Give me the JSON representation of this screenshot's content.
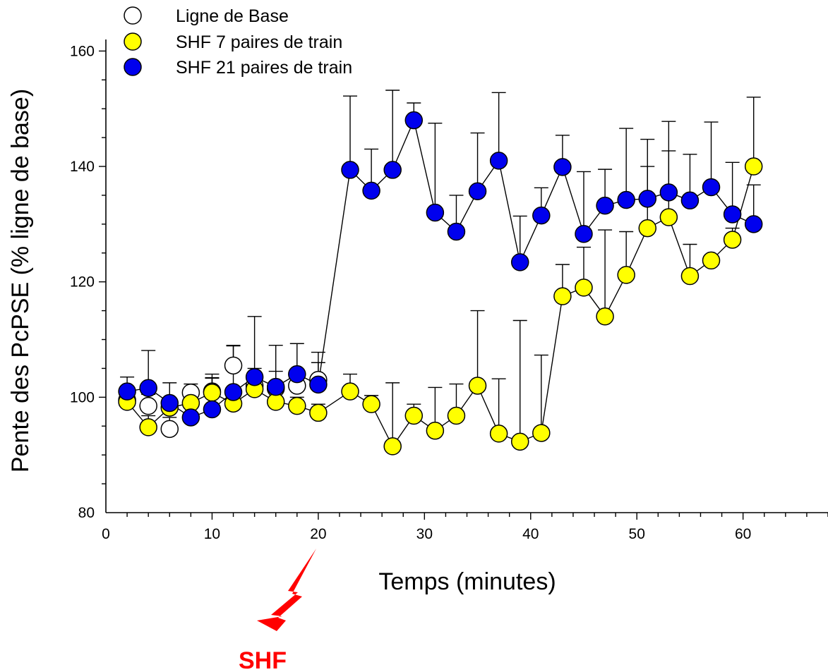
{
  "colors": {
    "baseline": "#ffffff",
    "shf7": "#ffff00",
    "shf21": "#0000ee",
    "stroke": "#000000",
    "stimulus": "#ff0000"
  },
  "stimulus": {
    "label": "SHF",
    "icon": "lightning-bolt-icon",
    "at_x": 20
  },
  "chart_data": {
    "type": "scatter",
    "title": "",
    "xlabel": "Temps (minutes)",
    "ylabel": "Pente des PcPSE (% ligne de base)",
    "xlim": [
      0,
      68
    ],
    "ylim": [
      80,
      162
    ],
    "xticks": [
      0,
      10,
      20,
      30,
      40,
      50,
      60
    ],
    "yticks": [
      80,
      100,
      120,
      140,
      160
    ],
    "grid": false,
    "legend": "top-left",
    "error_bars": "upper",
    "series": [
      {
        "name": "Ligne de Base",
        "color": "#ffffff",
        "connected": false,
        "x": [
          2,
          4,
          6,
          8,
          10,
          12,
          14,
          16,
          18,
          20
        ],
        "y": [
          99.5,
          98.5,
          94.5,
          100.8,
          101.0,
          105.5,
          102.0,
          101.5,
          102.0,
          103.0
        ],
        "err": [
          1.5,
          2.0,
          2.0,
          1.5,
          3.0,
          3.5,
          3.0,
          3.0,
          2.5,
          3.0
        ]
      },
      {
        "name": "SHF 7 paires de train",
        "color": "#ffff00",
        "connected": true,
        "x": [
          2,
          4,
          6,
          8,
          10,
          12,
          14,
          16,
          18,
          20,
          23,
          25,
          27,
          29,
          31,
          33,
          35,
          37,
          39,
          41,
          43,
          45,
          47,
          49,
          51,
          53,
          55,
          57,
          59,
          61
        ],
        "y": [
          99.2,
          94.8,
          98.2,
          99.0,
          100.8,
          98.9,
          101.4,
          99.2,
          98.5,
          97.3,
          101.0,
          98.8,
          91.5,
          96.8,
          94.2,
          96.8,
          102.0,
          93.7,
          92.3,
          93.8,
          117.5,
          119.0,
          114.0,
          121.2,
          129.3,
          131.2,
          121.0,
          123.7,
          127.3,
          140.0
        ],
        "err": [
          1.5,
          2.0,
          1.5,
          1.5,
          2.5,
          2.0,
          2.5,
          1.5,
          1.5,
          1.5,
          3.0,
          1.5,
          11.0,
          2.0,
          7.5,
          5.5,
          13.0,
          9.5,
          21.0,
          13.5,
          5.5,
          7.0,
          15.0,
          7.5,
          10.7,
          11.5,
          5.5,
          0.8,
          2.0,
          12.0
        ]
      },
      {
        "name": "SHF 21 paires de train",
        "color": "#0000ee",
        "connected": true,
        "x": [
          2,
          4,
          6,
          8,
          10,
          12,
          14,
          16,
          18,
          20,
          23,
          25,
          27,
          29,
          31,
          33,
          35,
          37,
          39,
          41,
          43,
          45,
          47,
          49,
          51,
          53,
          55,
          57,
          59,
          61
        ],
        "y": [
          101.0,
          101.6,
          99.0,
          96.5,
          97.9,
          100.9,
          103.5,
          101.8,
          104.0,
          102.2,
          139.4,
          135.8,
          139.4,
          148.0,
          132.0,
          128.7,
          135.7,
          141.0,
          123.4,
          131.5,
          139.9,
          128.3,
          133.2,
          134.2,
          134.4,
          135.5,
          134.1,
          136.4,
          131.7,
          130.0
        ],
        "err": [
          2.5,
          6.5,
          3.5,
          4.5,
          5.5,
          8.0,
          10.5,
          7.2,
          5.3,
          5.6,
          12.8,
          7.2,
          13.8,
          3.0,
          15.5,
          6.3,
          10.1,
          11.8,
          8.0,
          4.8,
          5.5,
          10.8,
          6.3,
          12.4,
          10.3,
          12.3,
          8.0,
          11.3,
          9.0,
          6.8
        ]
      }
    ]
  }
}
